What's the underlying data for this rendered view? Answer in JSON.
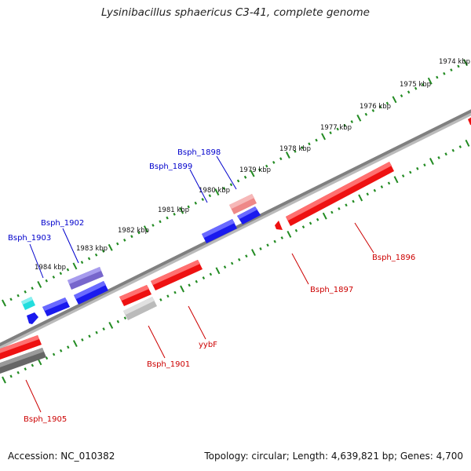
{
  "title": "Lysinibacillus sphaericus C3-41, complete genome",
  "footer": {
    "accession": "Accession: NC_010382",
    "topology": "Topology: circular; Length: 4,639,821 bp; Genes: 4,700"
  },
  "colors": {
    "background": "#ffffff",
    "backbone": "#808080",
    "tick": "#228b22",
    "forward_label": "#0000cc",
    "reverse_label": "#cc0000",
    "gene_blue": "#1a1aee",
    "gene_red": "#ee1111",
    "gene_purple": "#7766cc",
    "gene_cyan": "#22dddd",
    "gene_pink": "#ee8888",
    "gene_gray": "#bbbbbb",
    "gene_darkgray": "#666666"
  },
  "kbp_labels": [
    "1974 kbp",
    "1975 kbp",
    "1976 kbp",
    "1977 kbp",
    "1978 kbp",
    "1979 kbp",
    "1980 kbp",
    "1981 kbp",
    "1982 kbp",
    "1983 kbp",
    "1984 kbp"
  ],
  "forward_gene_labels": [
    "Bsph_1898",
    "Bsph_1899",
    "Bsph_1902",
    "Bsph_1903"
  ],
  "reverse_gene_labels": [
    "Bsph_1896",
    "Bsph_1897",
    "yybF",
    "Bsph_1901",
    "Bsph_1905"
  ]
}
